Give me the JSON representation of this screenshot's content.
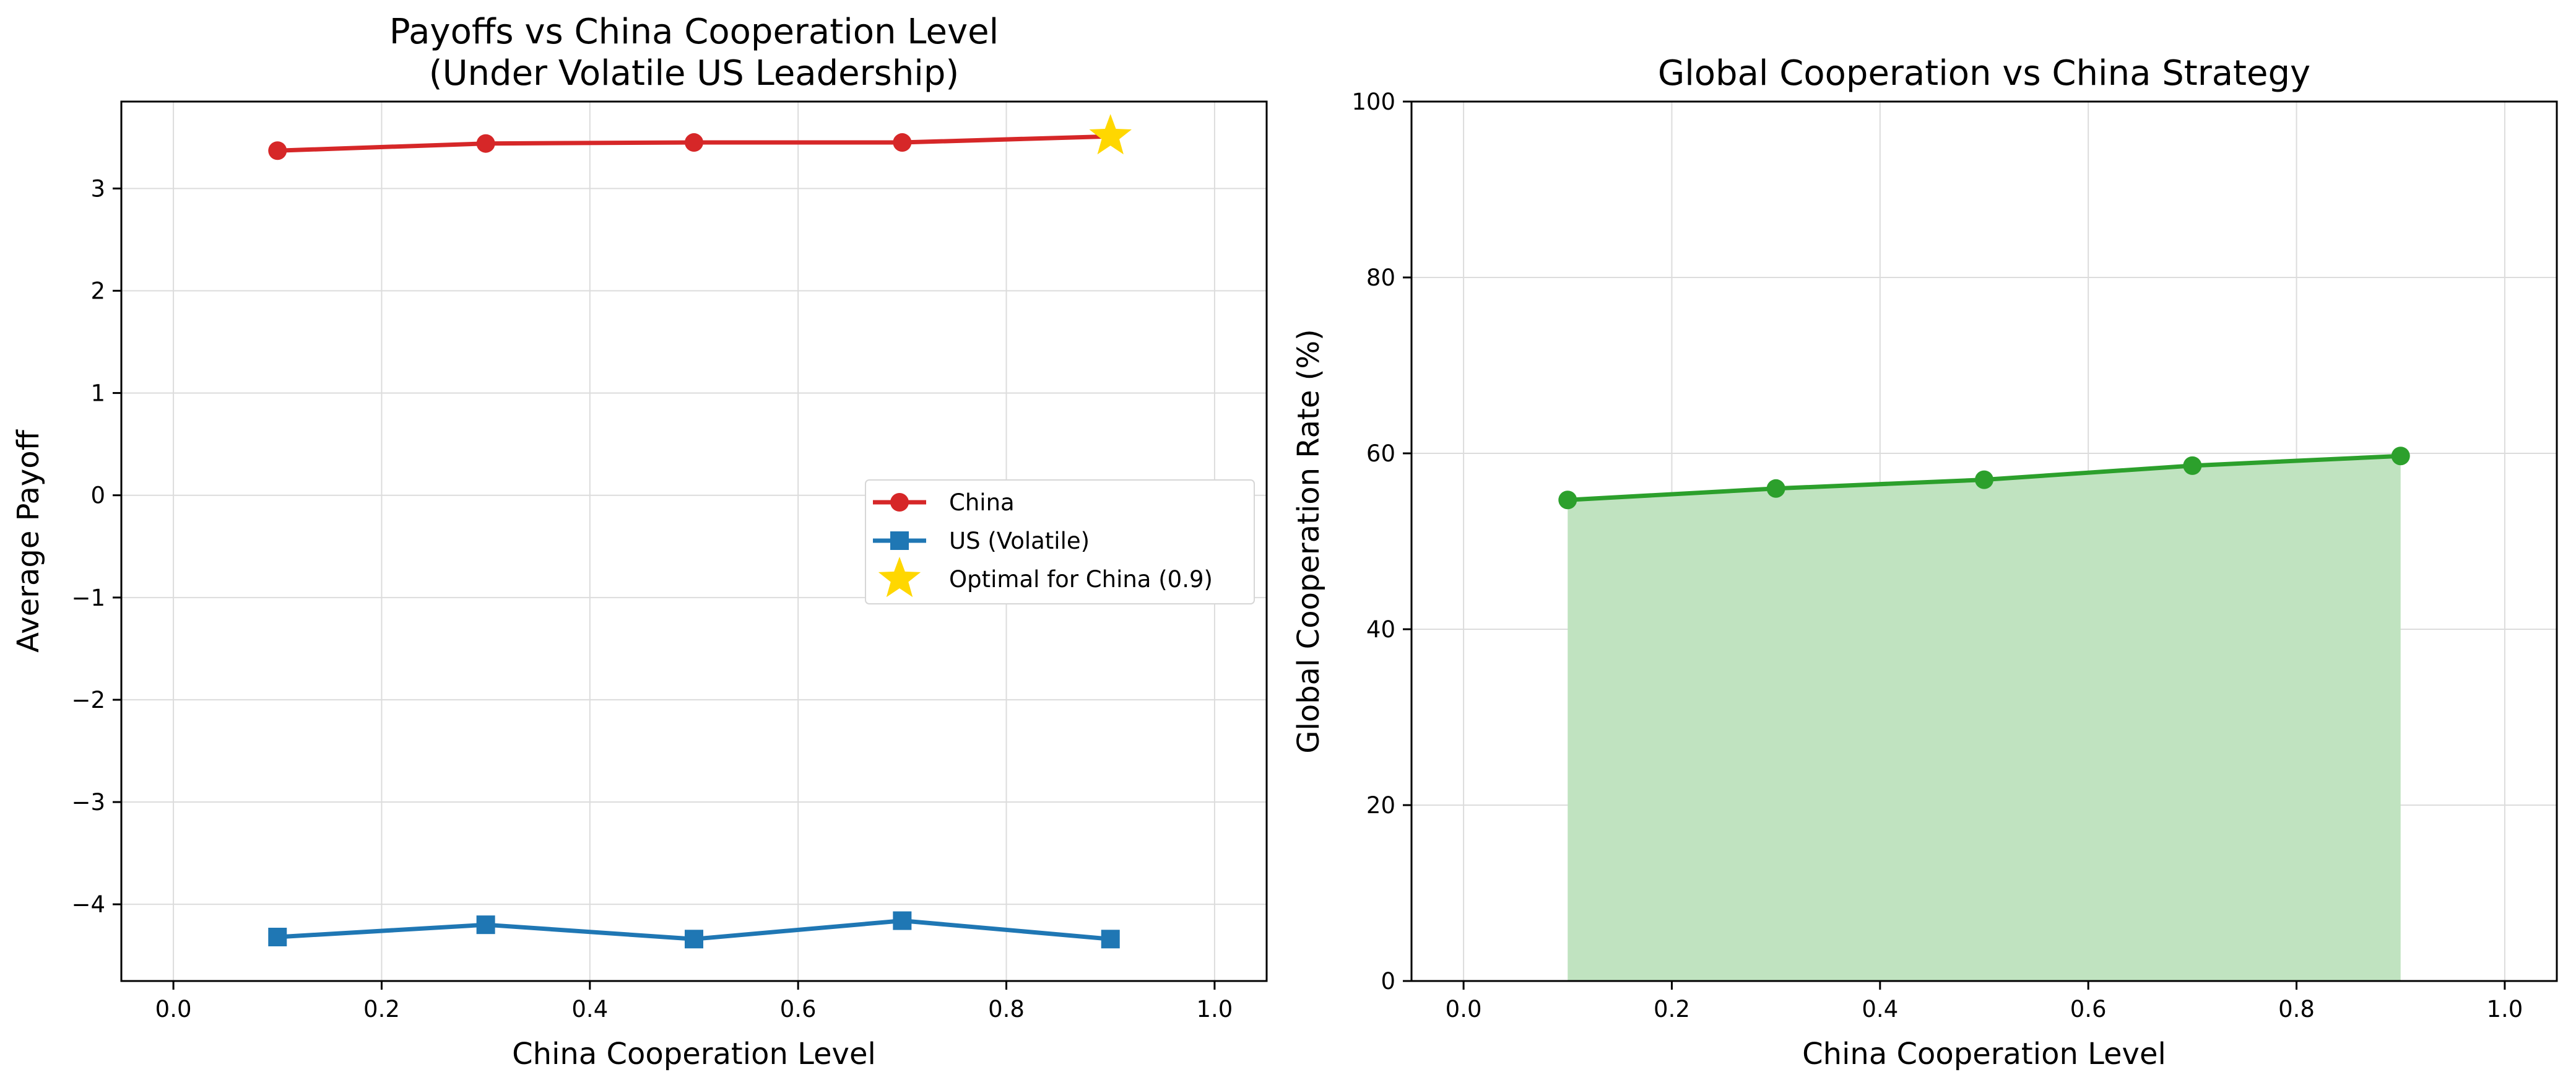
{
  "chart_data": [
    {
      "type": "line",
      "title": [
        "Payoffs vs China Cooperation Level",
        "(Under Volatile US Leadership)"
      ],
      "xlabel": "China Cooperation Level",
      "ylabel": "Average Payoff",
      "xlim": [
        -0.05,
        1.05
      ],
      "ylim": [
        -4.75,
        3.85
      ],
      "xticks": [
        0.0,
        0.2,
        0.4,
        0.6,
        0.8,
        1.0
      ],
      "xtick_labels": [
        "0.0",
        "0.2",
        "0.4",
        "0.6",
        "0.8",
        "1.0"
      ],
      "yticks": [
        -4,
        -3,
        -2,
        -1,
        0,
        1,
        2,
        3
      ],
      "ytick_labels": [
        "−4",
        "−3",
        "−2",
        "−1",
        "0",
        "1",
        "2",
        "3"
      ],
      "grid": true,
      "legend_position": "center-right",
      "x": [
        0.1,
        0.3,
        0.5,
        0.7,
        0.9
      ],
      "series": [
        {
          "name": "China",
          "values": [
            3.37,
            3.44,
            3.45,
            3.45,
            3.51
          ],
          "color": "#d62728",
          "marker": "circle"
        },
        {
          "name": "US (Volatile)",
          "values": [
            -4.32,
            -4.2,
            -4.34,
            -4.16,
            -4.34
          ],
          "color": "#1f77b4",
          "marker": "square"
        }
      ],
      "highlight": {
        "name": "Optimal for China (0.9)",
        "x": 0.9,
        "y": 3.51,
        "color": "#ffd700",
        "marker": "star"
      }
    },
    {
      "type": "area",
      "title": [
        "Global Cooperation vs China Strategy"
      ],
      "xlabel": "China Cooperation Level",
      "ylabel": "Global Cooperation Rate (%)",
      "xlim": [
        -0.05,
        1.05
      ],
      "ylim": [
        0,
        100
      ],
      "xticks": [
        0.0,
        0.2,
        0.4,
        0.6,
        0.8,
        1.0
      ],
      "xtick_labels": [
        "0.0",
        "0.2",
        "0.4",
        "0.6",
        "0.8",
        "1.0"
      ],
      "yticks": [
        0,
        20,
        40,
        60,
        80,
        100
      ],
      "ytick_labels": [
        "0",
        "20",
        "40",
        "60",
        "80",
        "100"
      ],
      "grid": true,
      "x": [
        0.1,
        0.3,
        0.5,
        0.7,
        0.9
      ],
      "series": [
        {
          "values": [
            54.7,
            56.0,
            57.0,
            58.6,
            59.7
          ],
          "color": "#2ca02c",
          "fill": "#c0e3c0",
          "marker": "circle"
        }
      ]
    }
  ]
}
